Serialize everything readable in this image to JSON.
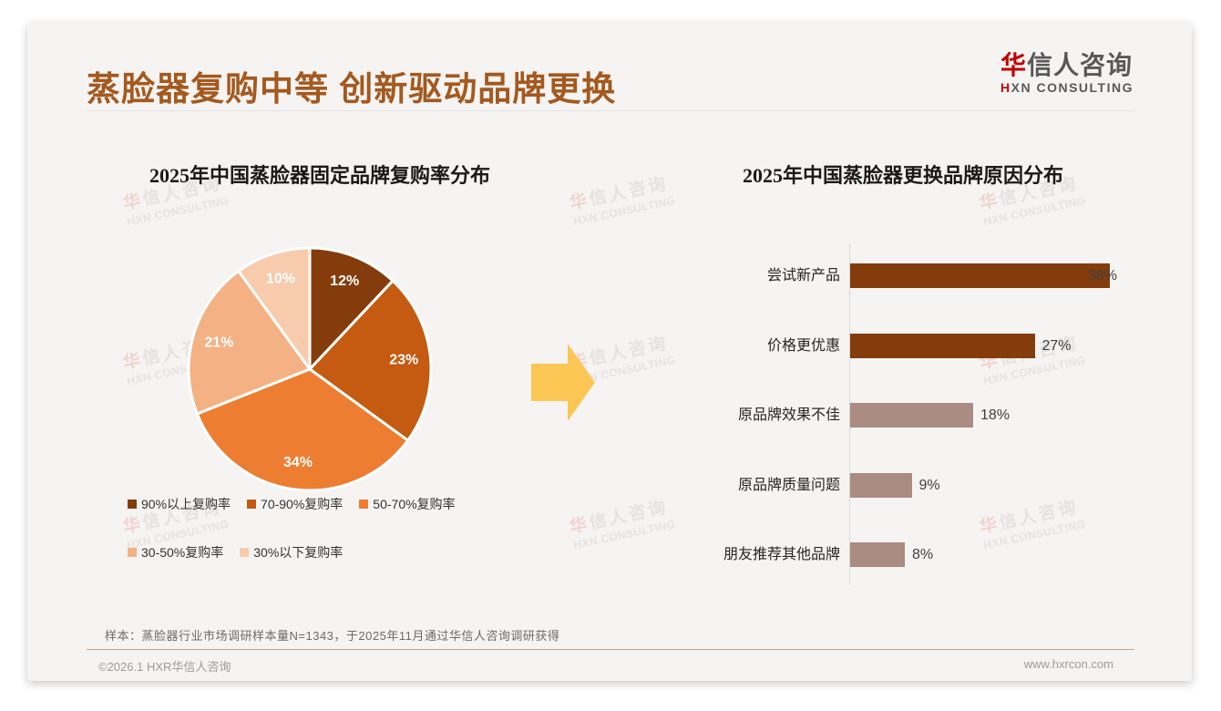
{
  "header": {
    "title": "蒸脸器复购中等 创新驱动品牌更换",
    "logo": {
      "cn_first": "华",
      "cn_rest": "信人咨询",
      "en_first": "H",
      "en_rest": "XN CONSULTING"
    }
  },
  "watermark": {
    "cn_first": "华",
    "cn_rest": "信人咨询",
    "en": "HXN CONSULTING"
  },
  "colors": {
    "title_accent": "#a4591f",
    "logo_red": "#c00000",
    "arrow_yellow": "#fbc654",
    "bar_brown": "#843c0c",
    "bar_mauve": "#aa8c82"
  },
  "arrow": {
    "direction": "right"
  },
  "chart_data": [
    {
      "type": "pie",
      "title": "2025年中国蒸脸器固定品牌复购率分布",
      "labels": [
        "90%以上复购率",
        "70-90%复购率",
        "50-70%复购率",
        "30-50%复购率",
        "30%以下复购率"
      ],
      "values": [
        12,
        23,
        34,
        21,
        10
      ],
      "value_labels": [
        "12%",
        "23%",
        "34%",
        "21%",
        "10%"
      ],
      "colors": [
        "#843C0C",
        "#C55A11",
        "#ED7D31",
        "#F4B183",
        "#F8CBAD"
      ],
      "start_angle_deg": 0,
      "direction": "clockwise",
      "legend_position": "bottom",
      "data_label_color": "#ffffff"
    },
    {
      "type": "bar",
      "orientation": "horizontal",
      "title": "2025年中国蒸脸器更换品牌原因分布",
      "categories": [
        "尝试新产品",
        "价格更优惠",
        "原品牌效果不佳",
        "原品牌质量问题",
        "朋友推荐其他品牌"
      ],
      "values": [
        38,
        27,
        18,
        9,
        8
      ],
      "value_labels": [
        "38%",
        "27%",
        "18%",
        "9%",
        "8%"
      ],
      "bar_colors": [
        "#843C0C",
        "#843C0C",
        "#AA8C82",
        "#AA8C82",
        "#AA8C82"
      ],
      "xlim": [
        0,
        40
      ],
      "grid": false,
      "legend_position": "none"
    }
  ],
  "footnote": "样本：蒸脸器行业市场调研样本量N=1343，于2025年11月通过华信人咨询调研获得",
  "footer": {
    "copyright": "©2026.1 HXR华信人咨询",
    "website": "www.hxrcon.com"
  }
}
